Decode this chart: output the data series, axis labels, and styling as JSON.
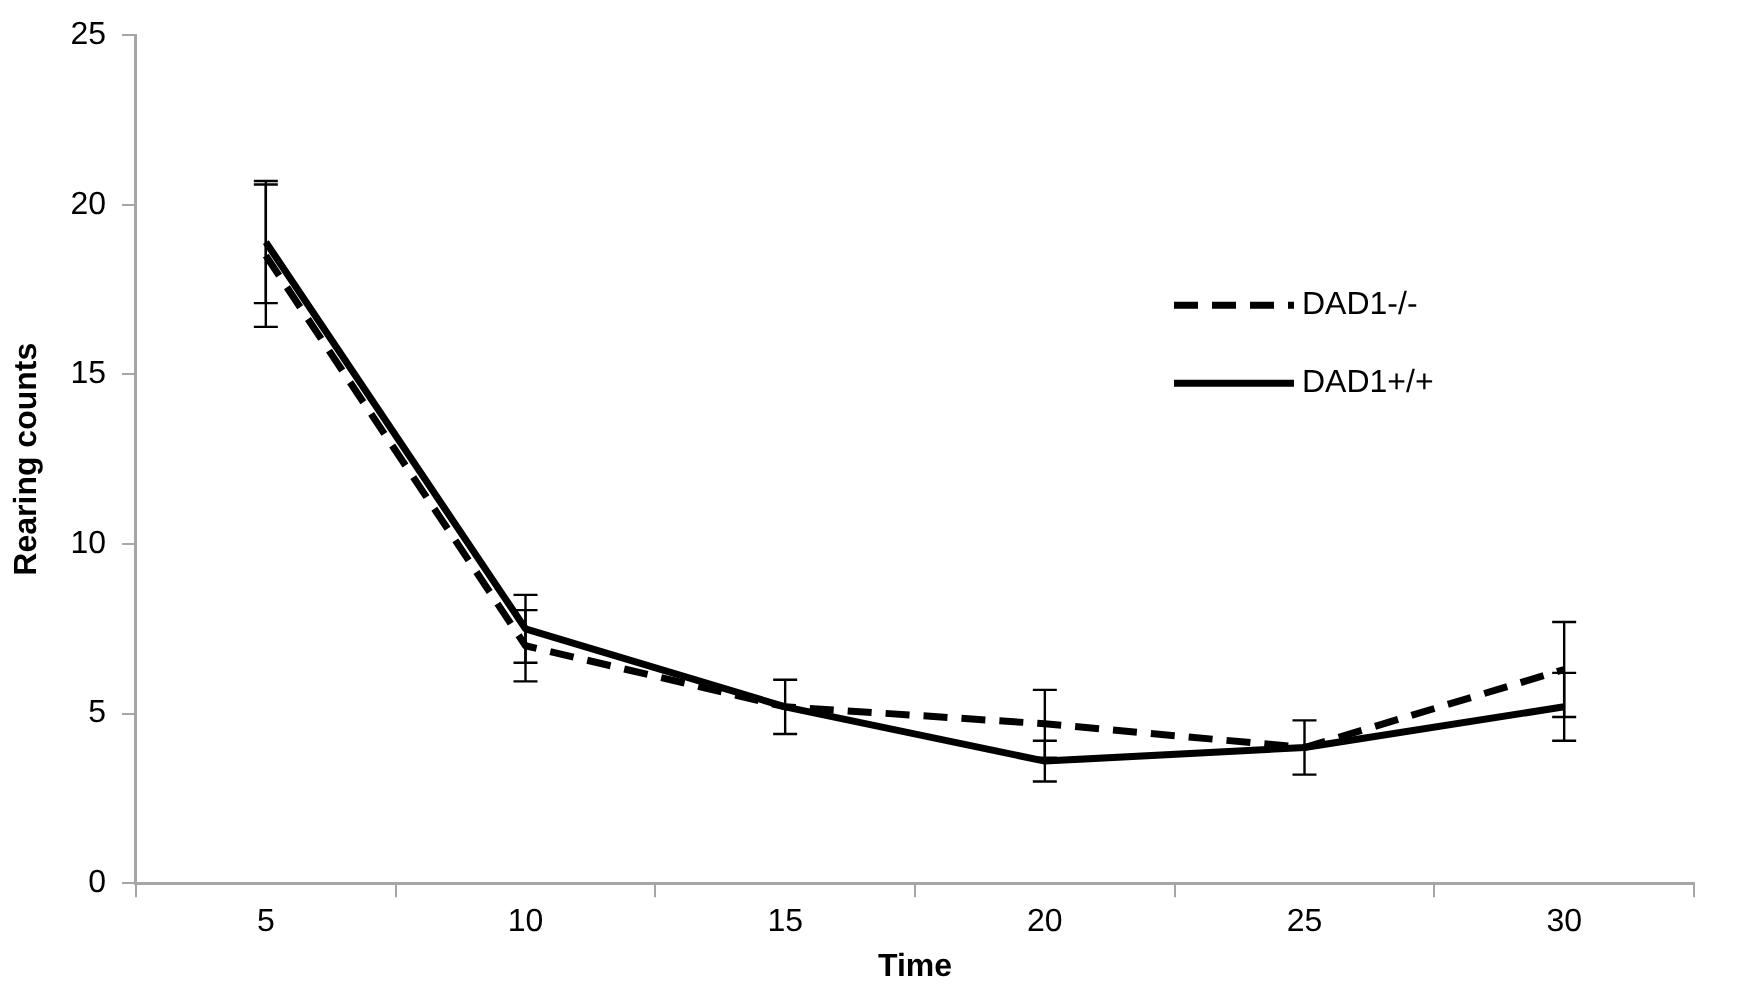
{
  "chart_data": {
    "type": "line",
    "xlabel": "Time",
    "ylabel": "Rearing counts",
    "categories": [
      "5",
      "10",
      "15",
      "20",
      "25",
      "30"
    ],
    "series": [
      {
        "name": "DAD1-/-",
        "color": "#000000",
        "line_style": "dashed",
        "values": [
          18.5,
          7.0,
          5.2,
          4.7,
          4.0,
          6.3
        ],
        "errors": [
          2.1,
          1.05,
          0.8,
          1.0,
          0.8,
          1.4
        ]
      },
      {
        "name": "DAD1+/+",
        "color": "#000000",
        "line_style": "solid",
        "values": [
          18.9,
          7.5,
          5.2,
          3.6,
          4.0,
          5.2
        ],
        "errors": [
          1.8,
          1.0,
          null,
          0.6,
          null,
          1.0
        ]
      }
    ],
    "ylim": [
      0,
      25
    ],
    "yticks": [
      0,
      5,
      10,
      15,
      20,
      25
    ],
    "grid": false,
    "legend": "top right",
    "marker": "none"
  }
}
